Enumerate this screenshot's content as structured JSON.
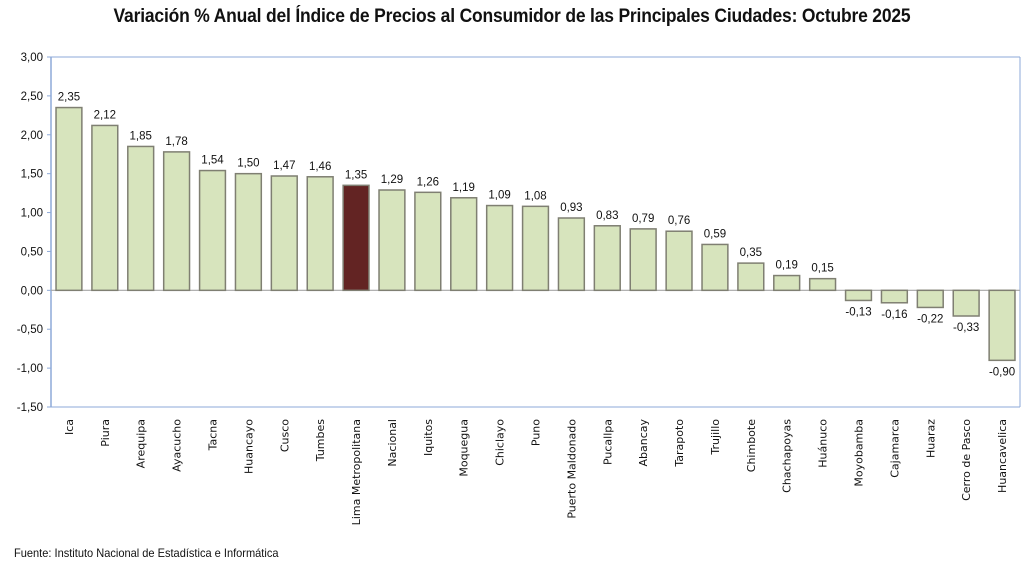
{
  "chart_data": {
    "type": "bar",
    "title": "Variación % Anual del Índice de Precios al Consumidor de las Principales  Ciudades: Octubre 2025",
    "xlabel": "",
    "ylabel": "",
    "ylim": [
      -1.5,
      3.0
    ],
    "yticks": [
      3.0,
      2.5,
      2.0,
      1.5,
      1.0,
      0.5,
      0.0,
      -0.5,
      -1.0,
      -1.5
    ],
    "ytick_labels": [
      "3,00",
      "2,50",
      "2,00",
      "1,50",
      "1,00",
      "0,50",
      "0,00",
      "-0,50",
      "-1,00",
      "-1,50"
    ],
    "grid": false,
    "legend": "none",
    "categories": [
      "Ica",
      "Piura",
      "Arequipa",
      "Ayacucho",
      "Tacna",
      "Huancayo",
      "Cusco",
      "Tumbes",
      "Lima Metropolitana",
      "Nacional",
      "Iquitos",
      "Moquegua",
      "Chiclayo",
      "Puno",
      "Puerto Maldonado",
      "Pucallpa",
      "Abancay",
      "Tarapoto",
      "Trujillo",
      "Chimbote",
      "Chachapoyas",
      "Huánuco",
      "Moyobamba",
      "Cajamarca",
      "Huaraz",
      "Cerro de Pasco",
      "Huancavelica"
    ],
    "values": [
      2.35,
      2.12,
      1.85,
      1.78,
      1.54,
      1.5,
      1.47,
      1.46,
      1.35,
      1.29,
      1.26,
      1.19,
      1.09,
      1.08,
      0.93,
      0.83,
      0.79,
      0.76,
      0.59,
      0.35,
      0.19,
      0.15,
      -0.13,
      -0.16,
      -0.22,
      -0.33,
      -0.9
    ],
    "value_labels": [
      "2,35",
      "2,12",
      "1,85",
      "1,78",
      "1,54",
      "1,50",
      "1,47",
      "1,46",
      "1,35",
      "1,29",
      "1,26",
      "1,19",
      "1,09",
      "1,08",
      "0,93",
      "0,83",
      "0,79",
      "0,76",
      "0,59",
      "0,35",
      "0,19",
      "0,15",
      "-0,13",
      "-0,16",
      "-0,22",
      "-0,33",
      "-0,90"
    ],
    "highlight_category": "Lima Metropolitana",
    "colors": {
      "bar": "#d7e4bd",
      "bar_border": "#7f7f72",
      "highlight": "#632423",
      "axis": "#8eaad8",
      "zero_line": "#a6a6a6"
    }
  },
  "source": "Fuente: Instituto  Nacional de Estadística  e Informática"
}
